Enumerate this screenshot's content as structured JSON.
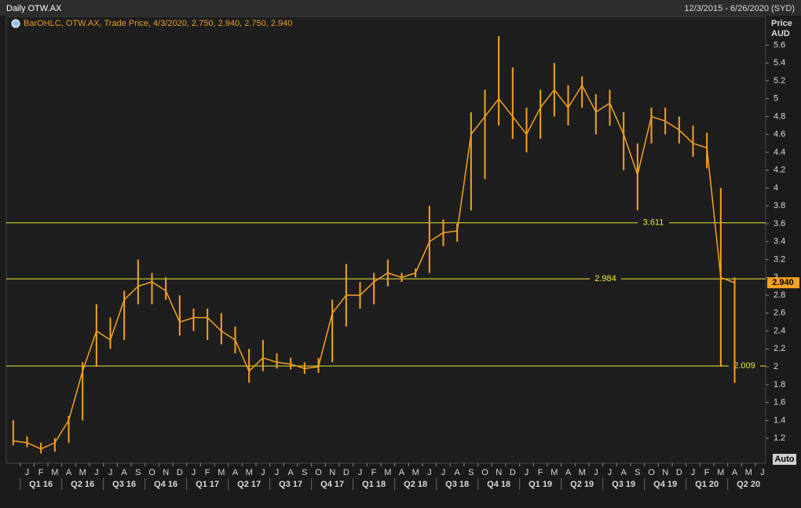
{
  "header": {
    "title": "Daily OTW.AX",
    "range": "12/3/2015 - 6/26/2020 (SYD)",
    "auto": "Auto"
  },
  "chart_data": {
    "type": "ohlc",
    "legend": "BarOHLC, OTW.AX, Trade Price, 4/3/2020, 2.750, 2.940, 2.750, 2.940",
    "y_label": [
      "Price",
      "AUD"
    ],
    "color": "#f5a21e",
    "x": [
      "2015-12",
      "2016-01",
      "2016-02",
      "2016-03",
      "2016-04",
      "2016-05",
      "2016-06",
      "2016-07",
      "2016-08",
      "2016-09",
      "2016-10",
      "2016-11",
      "2016-12",
      "2017-01",
      "2017-02",
      "2017-03",
      "2017-04",
      "2017-05",
      "2017-06",
      "2017-07",
      "2017-08",
      "2017-09",
      "2017-10",
      "2017-11",
      "2017-12",
      "2018-01",
      "2018-02",
      "2018-03",
      "2018-04",
      "2018-05",
      "2018-06",
      "2018-07",
      "2018-08",
      "2018-09",
      "2018-10",
      "2018-11",
      "2018-12",
      "2019-01",
      "2019-02",
      "2019-03",
      "2019-04",
      "2019-05",
      "2019-06",
      "2019-07",
      "2019-08",
      "2019-09",
      "2019-10",
      "2019-11",
      "2019-12",
      "2020-01",
      "2020-02",
      "2020-03",
      "2020-04"
    ],
    "values": [
      1.17,
      1.15,
      1.08,
      1.15,
      1.4,
      1.95,
      2.4,
      2.3,
      2.75,
      2.9,
      2.95,
      2.85,
      2.5,
      2.55,
      2.55,
      2.4,
      2.3,
      1.95,
      2.1,
      2.05,
      2.03,
      1.98,
      2.0,
      2.6,
      2.8,
      2.8,
      2.95,
      3.05,
      3.0,
      3.05,
      3.4,
      3.5,
      3.52,
      4.6,
      4.8,
      5.0,
      4.8,
      4.6,
      4.9,
      5.1,
      4.9,
      5.15,
      4.85,
      4.95,
      4.6,
      4.15,
      4.8,
      4.75,
      4.65,
      4.5,
      4.45,
      3.0,
      2.94
    ],
    "high": [
      1.4,
      1.22,
      1.15,
      1.2,
      1.45,
      2.05,
      2.7,
      2.55,
      2.85,
      3.2,
      3.05,
      3.0,
      2.8,
      2.65,
      2.65,
      2.6,
      2.45,
      2.2,
      2.3,
      2.15,
      2.1,
      2.05,
      2.1,
      2.75,
      3.15,
      2.95,
      3.05,
      3.2,
      3.05,
      3.1,
      3.8,
      3.65,
      3.6,
      4.85,
      5.1,
      5.7,
      5.35,
      4.9,
      5.1,
      5.4,
      5.15,
      5.25,
      5.05,
      5.1,
      4.85,
      4.5,
      4.9,
      4.9,
      4.8,
      4.7,
      4.62,
      4.0,
      3.0
    ],
    "low": [
      1.12,
      1.1,
      1.03,
      1.05,
      1.15,
      1.4,
      2.0,
      2.2,
      2.3,
      2.7,
      2.7,
      2.75,
      2.35,
      2.4,
      2.3,
      2.25,
      2.15,
      1.82,
      1.95,
      1.98,
      1.97,
      1.92,
      1.93,
      2.05,
      2.45,
      2.65,
      2.7,
      2.9,
      2.95,
      3.0,
      3.05,
      3.35,
      3.4,
      3.75,
      4.1,
      4.7,
      4.55,
      4.4,
      4.55,
      4.8,
      4.7,
      4.9,
      4.6,
      4.7,
      4.2,
      3.75,
      4.5,
      4.6,
      4.5,
      4.35,
      4.22,
      2.0,
      1.82
    ],
    "xlim": [
      "2015-12",
      "2020-06"
    ],
    "xticks": [
      {
        "value": "2016-01",
        "label": "J"
      },
      {
        "value": "2016-02",
        "label": "F"
      },
      {
        "value": "2016-03",
        "label": "M"
      },
      {
        "value": "2016-04",
        "label": "A"
      },
      {
        "value": "2016-05",
        "label": "M"
      },
      {
        "value": "2016-06",
        "label": "J"
      },
      {
        "value": "2016-07",
        "label": "J"
      },
      {
        "value": "2016-08",
        "label": "A"
      },
      {
        "value": "2016-09",
        "label": "S"
      },
      {
        "value": "2016-10",
        "label": "O"
      },
      {
        "value": "2016-11",
        "label": "N"
      },
      {
        "value": "2016-12",
        "label": "D"
      },
      {
        "value": "2017-01",
        "label": "J"
      },
      {
        "value": "2017-02",
        "label": "F"
      },
      {
        "value": "2017-03",
        "label": "M"
      },
      {
        "value": "2017-04",
        "label": "A"
      },
      {
        "value": "2017-05",
        "label": "M"
      },
      {
        "value": "2017-06",
        "label": "J"
      },
      {
        "value": "2017-07",
        "label": "J"
      },
      {
        "value": "2017-08",
        "label": "A"
      },
      {
        "value": "2017-09",
        "label": "S"
      },
      {
        "value": "2017-10",
        "label": "O"
      },
      {
        "value": "2017-11",
        "label": "N"
      },
      {
        "value": "2017-12",
        "label": "D"
      },
      {
        "value": "2018-01",
        "label": "J"
      },
      {
        "value": "2018-02",
        "label": "F"
      },
      {
        "value": "2018-03",
        "label": "M"
      },
      {
        "value": "2018-04",
        "label": "A"
      },
      {
        "value": "2018-05",
        "label": "M"
      },
      {
        "value": "2018-06",
        "label": "J"
      },
      {
        "value": "2018-07",
        "label": "J"
      },
      {
        "value": "2018-08",
        "label": "A"
      },
      {
        "value": "2018-09",
        "label": "S"
      },
      {
        "value": "2018-10",
        "label": "O"
      },
      {
        "value": "2018-11",
        "label": "N"
      },
      {
        "value": "2018-12",
        "label": "D"
      },
      {
        "value": "2019-01",
        "label": "J"
      },
      {
        "value": "2019-02",
        "label": "F"
      },
      {
        "value": "2019-03",
        "label": "M"
      },
      {
        "value": "2019-04",
        "label": "A"
      },
      {
        "value": "2019-05",
        "label": "M"
      },
      {
        "value": "2019-06",
        "label": "J"
      },
      {
        "value": "2019-07",
        "label": "J"
      },
      {
        "value": "2019-08",
        "label": "A"
      },
      {
        "value": "2019-09",
        "label": "S"
      },
      {
        "value": "2019-10",
        "label": "O"
      },
      {
        "value": "2019-11",
        "label": "N"
      },
      {
        "value": "2019-12",
        "label": "D"
      },
      {
        "value": "2020-01",
        "label": "J"
      },
      {
        "value": "2020-02",
        "label": "F"
      },
      {
        "value": "2020-03",
        "label": "M"
      },
      {
        "value": "2020-04",
        "label": "A"
      },
      {
        "value": "2020-05",
        "label": "M"
      },
      {
        "value": "2020-06",
        "label": "J"
      }
    ],
    "quarter_ticks": [
      {
        "value": "2016-01",
        "label": "Q1 16"
      },
      {
        "value": "2016-04",
        "label": "Q2 16"
      },
      {
        "value": "2016-07",
        "label": "Q3 16"
      },
      {
        "value": "2016-10",
        "label": "Q4 16"
      },
      {
        "value": "2017-01",
        "label": "Q1 17"
      },
      {
        "value": "2017-04",
        "label": "Q2 17"
      },
      {
        "value": "2017-07",
        "label": "Q3 17"
      },
      {
        "value": "2017-10",
        "label": "Q4 17"
      },
      {
        "value": "2018-01",
        "label": "Q1 18"
      },
      {
        "value": "2018-04",
        "label": "Q2 18"
      },
      {
        "value": "2018-07",
        "label": "Q3 18"
      },
      {
        "value": "2018-10",
        "label": "Q4 18"
      },
      {
        "value": "2019-01",
        "label": "Q1 19"
      },
      {
        "value": "2019-04",
        "label": "Q2 19"
      },
      {
        "value": "2019-07",
        "label": "Q3 19"
      },
      {
        "value": "2019-10",
        "label": "Q4 19"
      },
      {
        "value": "2020-01",
        "label": "Q1 20"
      },
      {
        "value": "2020-04",
        "label": "Q2 20"
      }
    ],
    "ylim": [
      0.92,
      5.92
    ],
    "yticks": [
      1.2,
      1.4,
      1.6,
      1.8,
      2,
      2.2,
      2.4,
      2.6,
      2.8,
      3,
      3.2,
      3.4,
      3.6,
      3.8,
      4,
      4.2,
      4.4,
      4.6,
      4.8,
      5,
      5.2,
      5.4,
      5.6
    ],
    "hlines": [
      3.611,
      2.984,
      2.009
    ],
    "hline_color": "#e8e83a",
    "last_price": {
      "value": 2.94,
      "label": "2.940"
    }
  }
}
